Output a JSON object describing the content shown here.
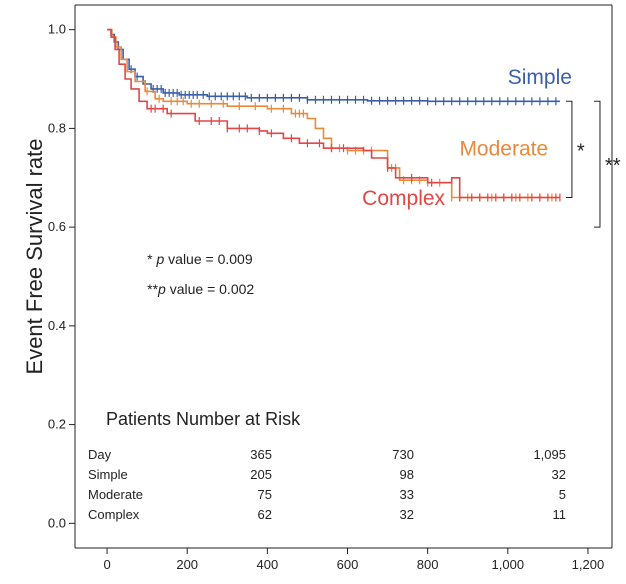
{
  "chart_data": {
    "type": "line",
    "title": "",
    "xlabel": "",
    "ylabel": "Event Free Survival rate",
    "xlim": [
      -80,
      1260
    ],
    "ylim": [
      -0.05,
      1.05
    ],
    "x_ticks": [
      0,
      200,
      400,
      600,
      800,
      1000,
      1200
    ],
    "x_tick_labels": [
      "0",
      "200",
      "400",
      "600",
      "800",
      "1,000",
      "1,200"
    ],
    "y_ticks": [
      0.0,
      0.2,
      0.4,
      0.6,
      0.8,
      1.0
    ],
    "y_tick_labels": [
      "0.0",
      "0.2",
      "0.4",
      "0.6",
      "0.8",
      "1.0"
    ],
    "grid": false,
    "series": [
      {
        "name": "Simple",
        "color": "#3a5fa8",
        "steps": [
          [
            0,
            1.0
          ],
          [
            10,
            0.99
          ],
          [
            18,
            0.975
          ],
          [
            28,
            0.96
          ],
          [
            40,
            0.94
          ],
          [
            55,
            0.92
          ],
          [
            70,
            0.905
          ],
          [
            90,
            0.89
          ],
          [
            110,
            0.88
          ],
          [
            140,
            0.872
          ],
          [
            180,
            0.868
          ],
          [
            250,
            0.865
          ],
          [
            350,
            0.862
          ],
          [
            500,
            0.858
          ],
          [
            650,
            0.856
          ],
          [
            800,
            0.855
          ],
          [
            1130,
            0.855
          ]
        ],
        "censor_x": [
          60,
          75,
          95,
          115,
          125,
          135,
          145,
          155,
          165,
          175,
          185,
          195,
          205,
          215,
          225,
          240,
          255,
          270,
          285,
          300,
          315,
          330,
          345,
          360,
          380,
          400,
          420,
          440,
          460,
          480,
          500,
          520,
          540,
          560,
          580,
          600,
          620,
          640,
          660,
          680,
          700,
          720,
          740,
          760,
          780,
          800,
          820,
          840,
          860,
          880,
          900,
          920,
          940,
          960,
          980,
          1000,
          1020,
          1040,
          1060,
          1080,
          1100,
          1120
        ]
      },
      {
        "name": "Moderate",
        "color": "#e98a3a",
        "steps": [
          [
            0,
            1.0
          ],
          [
            12,
            0.985
          ],
          [
            22,
            0.965
          ],
          [
            35,
            0.94
          ],
          [
            50,
            0.915
          ],
          [
            70,
            0.895
          ],
          [
            95,
            0.875
          ],
          [
            120,
            0.86
          ],
          [
            140,
            0.855
          ],
          [
            200,
            0.85
          ],
          [
            300,
            0.845
          ],
          [
            400,
            0.84
          ],
          [
            460,
            0.83
          ],
          [
            500,
            0.82
          ],
          [
            520,
            0.8
          ],
          [
            540,
            0.78
          ],
          [
            560,
            0.76
          ],
          [
            600,
            0.755
          ],
          [
            700,
            0.72
          ],
          [
            730,
            0.695
          ],
          [
            800,
            0.69
          ],
          [
            860,
            0.66
          ],
          [
            1130,
            0.66
          ]
        ],
        "censor_x": [
          100,
          130,
          160,
          175,
          190,
          210,
          230,
          260,
          290,
          330,
          370,
          410,
          440,
          470,
          480,
          490,
          560,
          580,
          600,
          620,
          640,
          660,
          700,
          710,
          720,
          740,
          760,
          780,
          800,
          830,
          860,
          880,
          900,
          930,
          960,
          990,
          1020,
          1050,
          1080,
          1110
        ]
      },
      {
        "name": "Complex",
        "color": "#e14747",
        "steps": [
          [
            0,
            1.0
          ],
          [
            10,
            0.985
          ],
          [
            20,
            0.96
          ],
          [
            30,
            0.93
          ],
          [
            45,
            0.9
          ],
          [
            60,
            0.88
          ],
          [
            80,
            0.855
          ],
          [
            100,
            0.84
          ],
          [
            150,
            0.83
          ],
          [
            220,
            0.815
          ],
          [
            300,
            0.8
          ],
          [
            380,
            0.795
          ],
          [
            400,
            0.79
          ],
          [
            440,
            0.78
          ],
          [
            480,
            0.77
          ],
          [
            540,
            0.76
          ],
          [
            640,
            0.755
          ],
          [
            660,
            0.74
          ],
          [
            700,
            0.72
          ],
          [
            720,
            0.7
          ],
          [
            800,
            0.69
          ],
          [
            860,
            0.7
          ],
          [
            880,
            0.66
          ],
          [
            1130,
            0.66
          ]
        ],
        "censor_x": [
          110,
          120,
          140,
          160,
          230,
          260,
          280,
          300,
          330,
          350,
          380,
          410,
          460,
          500,
          530,
          560,
          590,
          700,
          760,
          810,
          880,
          910,
          930,
          950,
          970,
          990,
          1010,
          1030,
          1060,
          1080,
          1100,
          1120,
          1130
        ]
      }
    ],
    "series_labels": [
      {
        "text": "Simple",
        "x": 1080,
        "y": 0.89
      },
      {
        "text": "Moderate",
        "x": 990,
        "y": 0.745
      },
      {
        "text": "Complex",
        "x": 740,
        "y": 0.645
      }
    ],
    "annotations": [
      {
        "text": "* ",
        "italic": "p",
        "rest": " value = 0.009",
        "x": 100,
        "y": 0.525
      },
      {
        "text": "**",
        "italic": "p",
        "rest": " value = 0.002",
        "x": 100,
        "y": 0.465
      }
    ],
    "brackets": [
      {
        "y_top": 0.855,
        "y_bottom": 0.66,
        "x": 1160,
        "label": "*"
      },
      {
        "y_top": 0.855,
        "y_bottom": 0.6,
        "x": 1230,
        "label": "**"
      }
    ],
    "risk_table": {
      "title": "Patients Number at Risk",
      "header": [
        "Day",
        "365",
        "730",
        "1,095"
      ],
      "rows": [
        {
          "label": "Simple",
          "color": "#3a5fa8",
          "values": [
            "205",
            "98",
            "32"
          ]
        },
        {
          "label": "Moderate",
          "color": "#e98a3a",
          "values": [
            "75",
            "33",
            "5"
          ]
        },
        {
          "label": "Complex",
          "color": "#e14747",
          "values": [
            "62",
            "32",
            "11"
          ]
        }
      ]
    }
  }
}
